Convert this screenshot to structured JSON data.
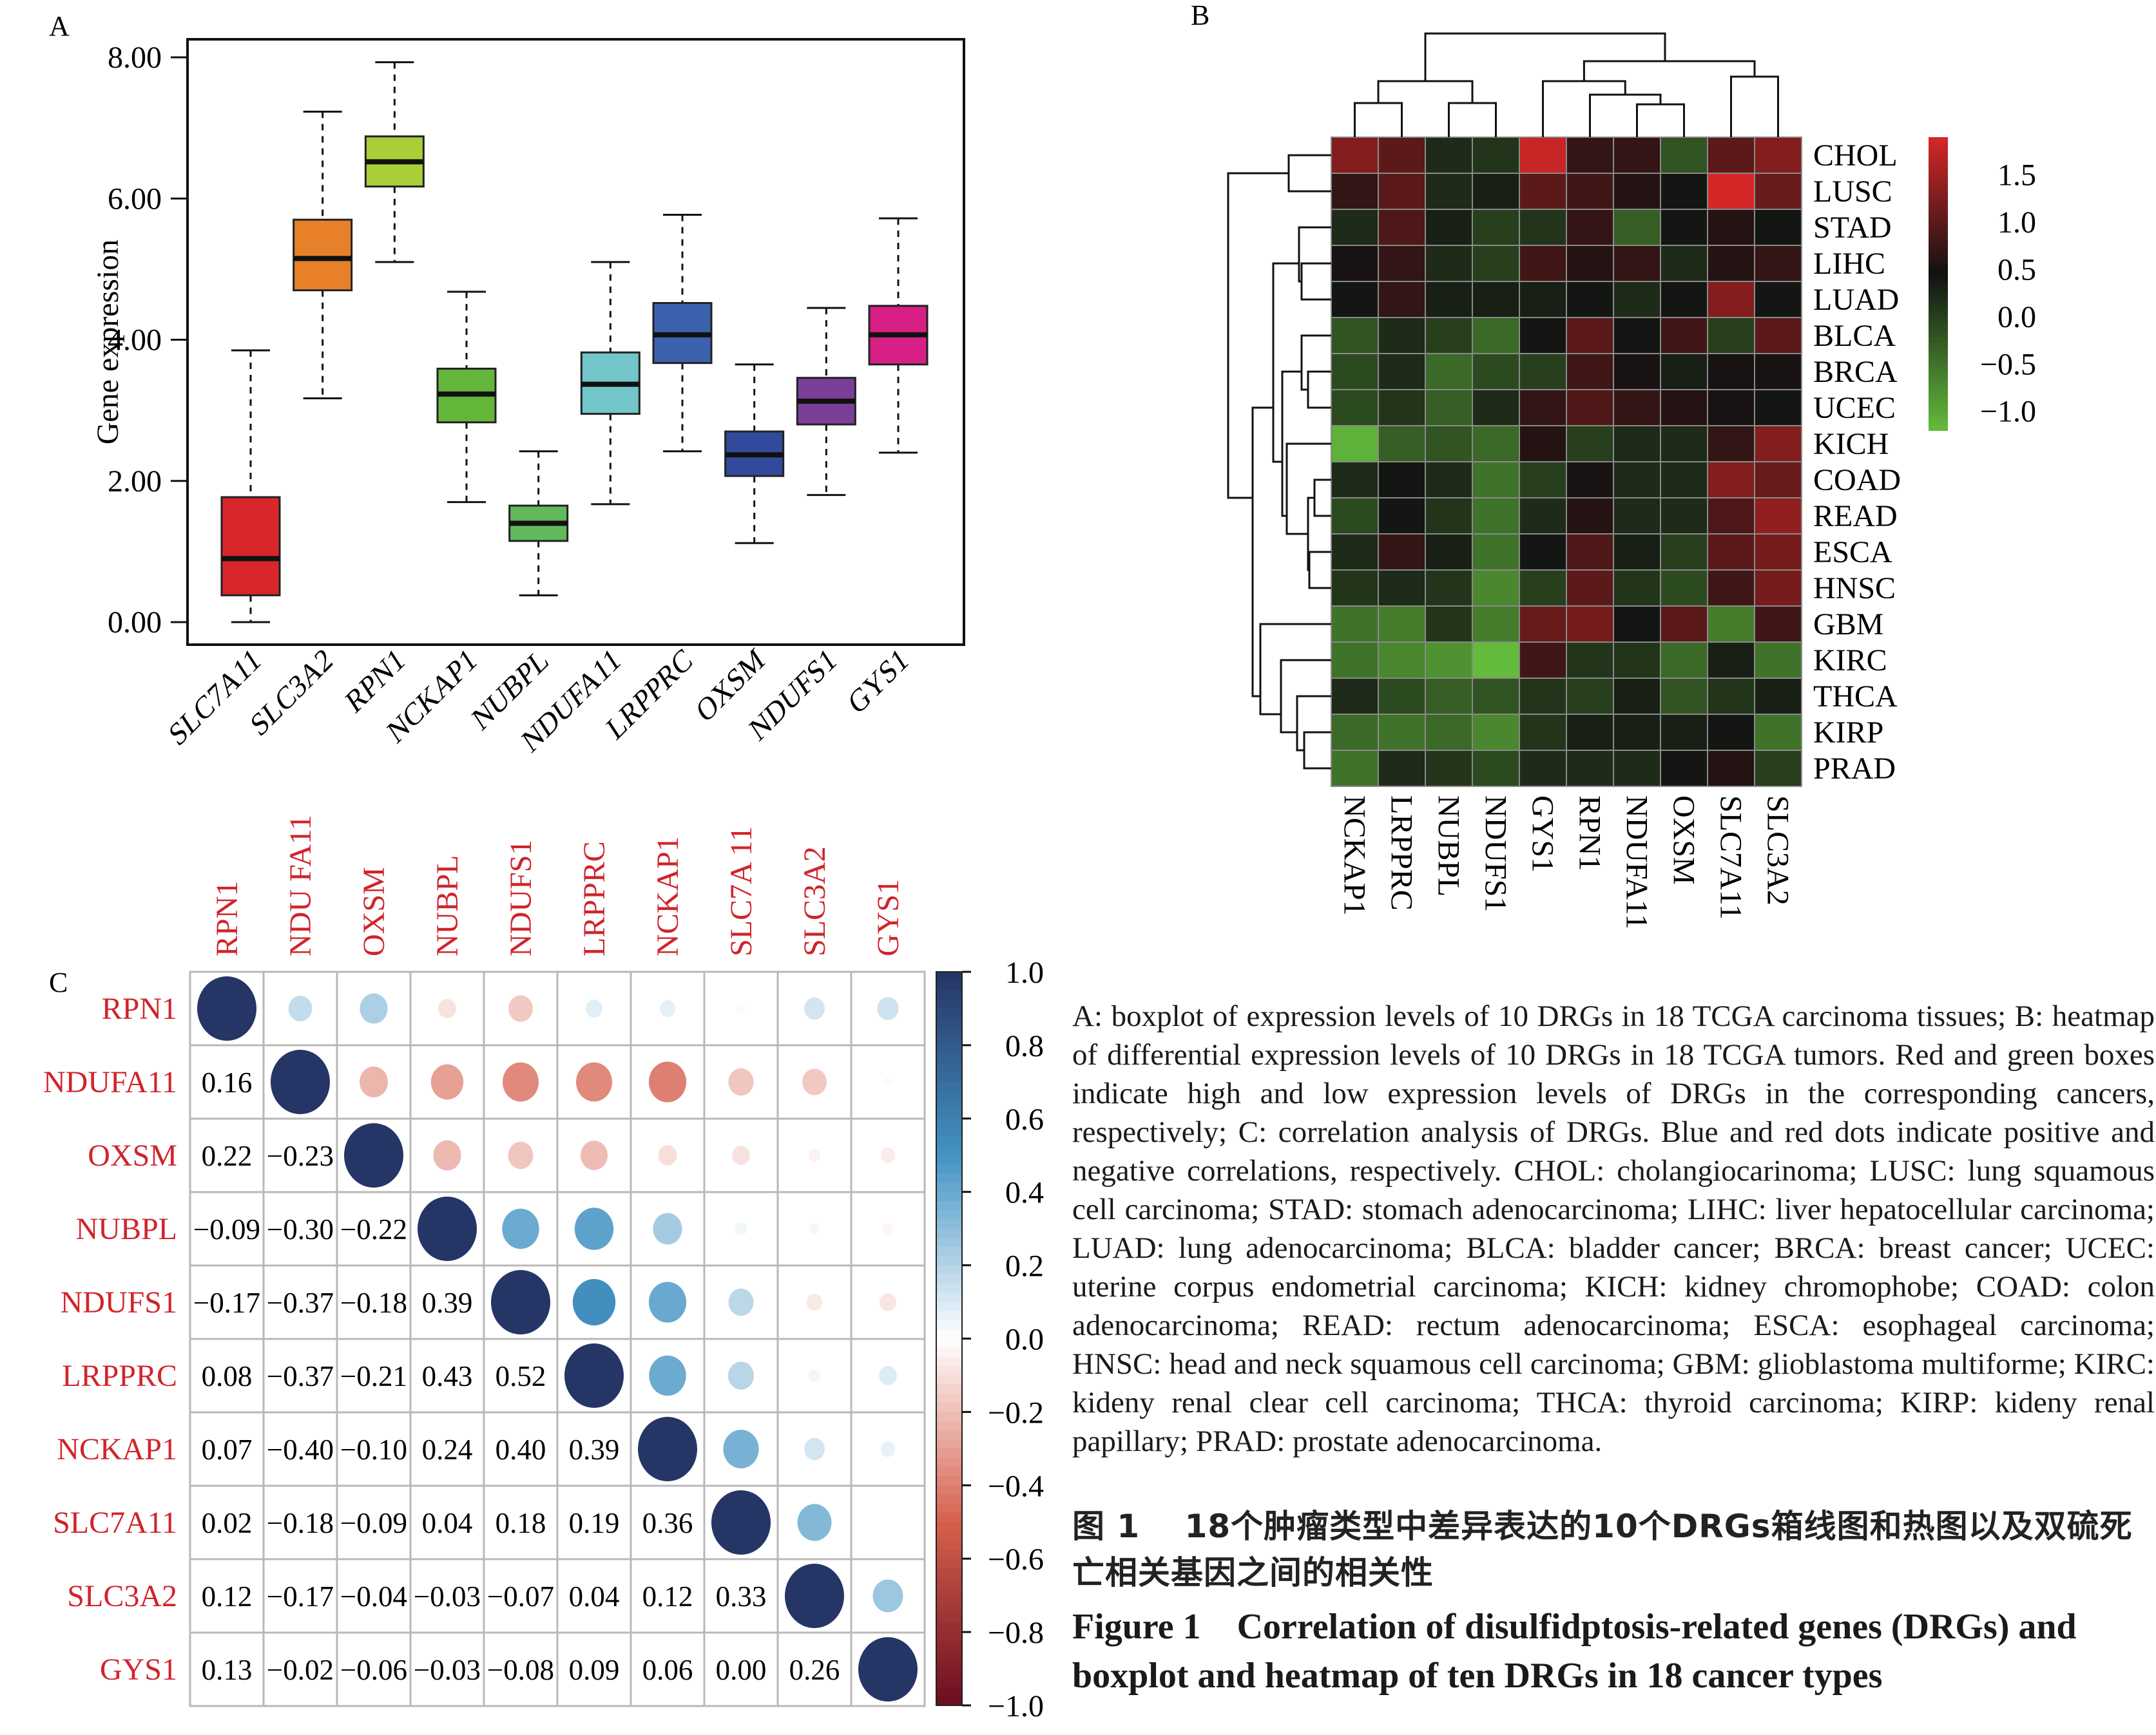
{
  "panel_labels": {
    "a": "A",
    "b": "B",
    "c": "C"
  },
  "colors": {
    "heat_high": "#d62728",
    "heat_mid": "#111111",
    "heat_low": "#63bb3c",
    "corr_pos": "#253565",
    "corr_neg": "#6a0d1f",
    "label_red": "#d0242b"
  },
  "chart_data": [
    {
      "panel": "A",
      "type": "boxplot",
      "title": "",
      "xlabel": "",
      "ylabel": "Gene expression",
      "ylim": [
        -0.2,
        8.3
      ],
      "yticks": [
        0,
        2,
        4,
        6,
        8
      ],
      "categories": [
        "SLC7A11",
        "SLC3A2",
        "RPN1",
        "NCKAP1",
        "NUBPL",
        "NDUFA11",
        "LRPPRC",
        "OXSM",
        "NDUFS1",
        "GYS1"
      ],
      "box_colors": [
        "#d9262b",
        "#e8802a",
        "#a8cf38",
        "#63b63a",
        "#62b95c",
        "#72c5c8",
        "#3c62ad",
        "#324a9b",
        "#7b3f98",
        "#d81f85"
      ],
      "boxes": [
        {
          "min": 0.0,
          "q1": 0.38,
          "median": 0.9,
          "q3": 1.77,
          "max": 3.85
        },
        {
          "min": 3.17,
          "q1": 4.7,
          "median": 5.15,
          "q3": 5.7,
          "max": 7.23
        },
        {
          "min": 5.1,
          "q1": 6.17,
          "median": 6.52,
          "q3": 6.88,
          "max": 7.93
        },
        {
          "min": 1.7,
          "q1": 2.83,
          "median": 3.23,
          "q3": 3.59,
          "max": 4.68
        },
        {
          "min": 0.38,
          "q1": 1.15,
          "median": 1.4,
          "q3": 1.65,
          "max": 2.42
        },
        {
          "min": 1.67,
          "q1": 2.95,
          "median": 3.37,
          "q3": 3.82,
          "max": 5.1
        },
        {
          "min": 2.42,
          "q1": 3.67,
          "median": 4.07,
          "q3": 4.52,
          "max": 5.77
        },
        {
          "min": 1.12,
          "q1": 2.07,
          "median": 2.37,
          "q3": 2.7,
          "max": 3.65
        },
        {
          "min": 1.8,
          "q1": 2.8,
          "median": 3.13,
          "q3": 3.46,
          "max": 4.45
        },
        {
          "min": 2.4,
          "q1": 3.65,
          "median": 4.07,
          "q3": 4.48,
          "max": 5.72
        }
      ]
    },
    {
      "panel": "B",
      "type": "heatmap",
      "title": "",
      "rows": [
        "CHOL",
        "LUSC",
        "STAD",
        "LIHC",
        "LUAD",
        "BLCA",
        "BRCA",
        "UCEC",
        "KICH",
        "COAD",
        "READ",
        "ESCA",
        "HNSC",
        "GBM",
        "KIRC",
        "THCA",
        "KIRP",
        "PRAD"
      ],
      "columns": [
        "NCKAP1",
        "LRPPRC",
        "NUBPL",
        "NDUFS1",
        "GYS1",
        "RPN1",
        "NDUFA11",
        "OXSM",
        "SLC7A11",
        "SLC3A2"
      ],
      "values": [
        [
          1.3,
          1.0,
          0.2,
          0.1,
          1.8,
          0.7,
          0.7,
          -0.2,
          1.0,
          1.3
        ],
        [
          0.7,
          1.0,
          0.2,
          0.3,
          1.0,
          0.8,
          0.6,
          0.4,
          1.9,
          1.1
        ],
        [
          0.2,
          0.9,
          0.3,
          0.0,
          0.1,
          0.7,
          -0.3,
          0.4,
          0.6,
          0.4
        ],
        [
          0.5,
          0.7,
          0.2,
          0.0,
          0.8,
          0.6,
          0.7,
          0.2,
          0.6,
          0.7
        ],
        [
          0.4,
          0.7,
          0.3,
          0.3,
          0.3,
          0.4,
          0.2,
          0.4,
          1.3,
          0.4
        ],
        [
          -0.2,
          0.2,
          0.0,
          -0.4,
          0.4,
          1.0,
          0.4,
          0.8,
          0.0,
          1.0
        ],
        [
          -0.1,
          0.2,
          -0.4,
          -0.1,
          0.0,
          0.8,
          0.5,
          0.3,
          0.5,
          0.5
        ],
        [
          -0.1,
          0.1,
          -0.3,
          0.2,
          0.7,
          0.9,
          0.7,
          0.6,
          0.5,
          0.4
        ],
        [
          -1.1,
          -0.3,
          -0.2,
          -0.4,
          0.6,
          0.0,
          0.2,
          0.2,
          0.7,
          1.3
        ],
        [
          0.2,
          0.4,
          0.2,
          -0.5,
          0.0,
          0.5,
          0.2,
          0.2,
          1.3,
          1.1
        ],
        [
          -0.1,
          0.4,
          0.1,
          -0.5,
          0.2,
          0.6,
          0.2,
          0.2,
          0.9,
          1.4
        ],
        [
          0.2,
          0.7,
          0.3,
          -0.5,
          0.4,
          0.9,
          0.3,
          0.0,
          1.0,
          1.2
        ],
        [
          0.1,
          0.2,
          0.1,
          -0.7,
          0.0,
          1.0,
          0.1,
          -0.1,
          0.8,
          1.2
        ],
        [
          -0.5,
          -0.6,
          0.1,
          -0.6,
          1.1,
          1.2,
          0.4,
          1.0,
          -0.6,
          0.8
        ],
        [
          -0.5,
          -0.7,
          -0.8,
          -1.2,
          0.8,
          0.1,
          0.1,
          -0.4,
          0.3,
          -0.5
        ],
        [
          0.2,
          -0.1,
          -0.3,
          -0.2,
          0.1,
          0.0,
          0.3,
          -0.2,
          0.1,
          0.3
        ],
        [
          -0.4,
          -0.5,
          -0.4,
          -0.7,
          0.1,
          0.3,
          0.3,
          0.3,
          0.4,
          -0.5
        ],
        [
          -0.5,
          0.2,
          0.1,
          -0.1,
          0.2,
          0.2,
          0.2,
          0.4,
          0.6,
          0.0
        ]
      ],
      "colorbar": {
        "range": [
          -1.2,
          1.9
        ],
        "ticks": [
          "1.5",
          "1.0",
          "0.5",
          "0.0",
          "−0.5",
          "−1.0"
        ],
        "tick_values": [
          1.5,
          1.0,
          0.5,
          0.0,
          -0.5,
          -1.0
        ]
      },
      "row_dendrogram": true,
      "column_dendrogram": true
    },
    {
      "panel": "C",
      "type": "correlation-matrix",
      "title": "",
      "genes": [
        "RPN1",
        "NDUFA11",
        "OXSM",
        "NUBPL",
        "NDUFS1",
        "LRPPRC",
        "NCKAP1",
        "SLC7A11",
        "SLC3A2",
        "GYS1"
      ],
      "column_labels": [
        "RPN1",
        "NDU FA11",
        "OXSM",
        "NUBPL",
        "NDUFS1",
        "LRPPRC",
        "NCKAP1",
        "SLC7A 11",
        "SLC3A2",
        "GYS1"
      ],
      "lower_triangle": [
        [],
        [
          0.16
        ],
        [
          0.22,
          -0.23
        ],
        [
          -0.09,
          -0.3,
          -0.22
        ],
        [
          -0.17,
          -0.37,
          -0.18,
          0.39
        ],
        [
          0.08,
          -0.37,
          -0.21,
          0.43,
          0.52
        ],
        [
          0.07,
          -0.4,
          -0.1,
          0.24,
          0.4,
          0.39
        ],
        [
          0.02,
          -0.18,
          -0.09,
          0.04,
          0.18,
          0.19,
          0.36
        ],
        [
          0.12,
          -0.17,
          -0.04,
          -0.03,
          -0.07,
          0.04,
          0.12,
          0.33
        ],
        [
          0.13,
          -0.02,
          -0.06,
          -0.03,
          -0.08,
          0.09,
          0.06,
          0.0,
          0.26
        ]
      ],
      "display_lower": "numbers",
      "display_upper": "circles",
      "colorbar": {
        "range": [
          -1.0,
          1.0
        ],
        "ticks": [
          "1.0",
          "0.8",
          "0.6",
          "0.4",
          "0.2",
          "0.0",
          "−0.2",
          "−0.4",
          "−0.6",
          "−0.8",
          "−1.0"
        ]
      }
    }
  ],
  "caption": {
    "legend_text": "A: boxplot of expression levels of 10 DRGs in 18 TCGA carcinoma tissues; B: heatmap of differential expression levels of 10 DRGs in 18 TCGA tumors. Red and green boxes indicate high and low expression levels of DRGs in the corresponding cancers, respectively; C: correlation analysis of DRGs. Blue and red dots indicate positive and negative correlations, respectively. CHOL: cholangiocarinoma; LUSC: lung squamous cell carcinoma; STAD: stomach adenocarcinoma; LIHC: liver hepatocellular carcinoma; LUAD: lung adenocarcinoma; BLCA: bladder cancer; BRCA: breast cancer; UCEC: uterine corpus endometrial carcinoma; KICH: kidney chromophobe; COAD: colon adenocarcinoma; READ: rectum adenocarcinoma; ESCA: esophageal carcinoma; HNSC: head and neck squamous cell carcinoma; GBM: glioblastoma multiforme; KIRC: kideny renal clear cell carcinoma; THCA: thyroid carcinoma; KIRP: kideny renal papillary; PRAD: prostate adenocarcinoma.",
    "title_cn": "图 1　 18个肿瘤类型中差异表达的10个DRGs箱线图和热图以及双硫死亡相关基因之间的相关性",
    "title_en": "Figure 1　Correlation of disulfidptosis-related genes (DRGs) and boxplot and heatmap of ten DRGs in 18 cancer types"
  }
}
